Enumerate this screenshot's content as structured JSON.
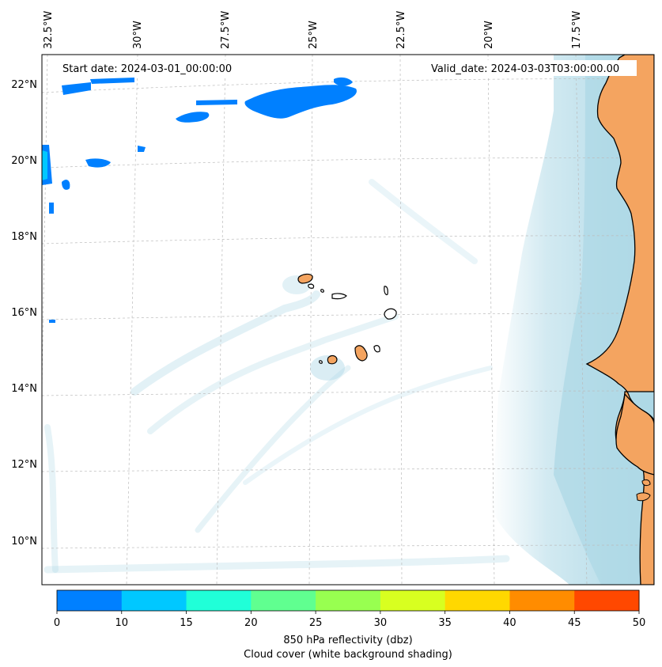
{
  "map": {
    "start_date": "Start date: 2024-03-01_00:00:00",
    "valid_date": "Valid_date: 2024-03-03T03:00:00.00",
    "lon_labels": [
      "32.5°W",
      "30°W",
      "27.5°W",
      "25°W",
      "22.5°W",
      "20°W",
      "17.5°W"
    ],
    "lat_labels": [
      "22°N",
      "20°N",
      "18°N",
      "16°N",
      "14°N",
      "12°N",
      "10°N"
    ],
    "land_color": "#f4a460",
    "cloud_color": "#add8e6",
    "gridlines": true
  },
  "colorbar": {
    "ticks": [
      "0",
      "10",
      "15",
      "20",
      "25",
      "30",
      "35",
      "40",
      "45",
      "50"
    ],
    "colors": [
      "#0080ff",
      "#00c8ff",
      "#20ffd8",
      "#60ff90",
      "#98ff50",
      "#d8ff20",
      "#ffd800",
      "#ff8c00",
      "#ff4800"
    ],
    "title_line1": "850 hPa reflectivity (dbz)",
    "title_line2": "Cloud cover (white background shading)"
  }
}
